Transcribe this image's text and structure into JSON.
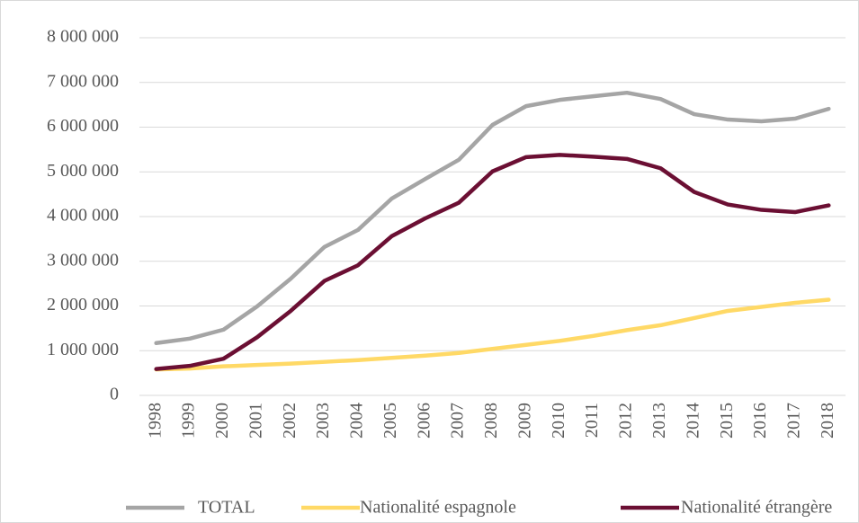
{
  "chart_data": {
    "type": "line",
    "categories": [
      "1998",
      "1999",
      "2000",
      "2001",
      "2002",
      "2003",
      "2004",
      "2005",
      "2006",
      "2007",
      "2008",
      "2009",
      "2010",
      "2011",
      "2012",
      "2013",
      "2014",
      "2015",
      "2016",
      "2017",
      "2018"
    ],
    "series": [
      {
        "name": "TOTAL",
        "color": "#a5a5a5",
        "values": [
          1170000,
          1270000,
          1470000,
          1990000,
          2610000,
          3320000,
          3700000,
          4400000,
          4840000,
          5270000,
          6050000,
          6470000,
          6610000,
          6690000,
          6770000,
          6630000,
          6290000,
          6170000,
          6130000,
          6190000,
          6410000
        ]
      },
      {
        "name": "Nationalité espagnole",
        "color": "#ffd966",
        "values": [
          580000,
          600000,
          650000,
          680000,
          710000,
          750000,
          790000,
          840000,
          890000,
          950000,
          1040000,
          1130000,
          1220000,
          1330000,
          1460000,
          1570000,
          1730000,
          1890000,
          1980000,
          2070000,
          2140000
        ]
      },
      {
        "name": "Nationalité étrangère",
        "color": "#6b0f33",
        "values": [
          590000,
          660000,
          820000,
          1300000,
          1890000,
          2560000,
          2910000,
          3560000,
          3960000,
          4310000,
          5010000,
          5330000,
          5380000,
          5340000,
          5290000,
          5080000,
          4550000,
          4270000,
          4150000,
          4100000,
          4250000
        ]
      }
    ],
    "ylim": [
      0,
      8000000
    ],
    "yticks": [
      0,
      {
        "value": 1000000,
        "label": "1 000 000"
      },
      {
        "value": 2000000,
        "label": "2 000 000"
      },
      {
        "value": 3000000,
        "label": "3 000 000"
      },
      {
        "value": 4000000,
        "label": "4 000 000"
      },
      {
        "value": 5000000,
        "label": "5 000 000"
      },
      {
        "value": 6000000,
        "label": "6 000 000"
      },
      {
        "value": 7000000,
        "label": "7 000 000"
      },
      {
        "value": 8000000,
        "label": "8 000 000"
      }
    ],
    "grid": true,
    "legend": "bottom"
  }
}
